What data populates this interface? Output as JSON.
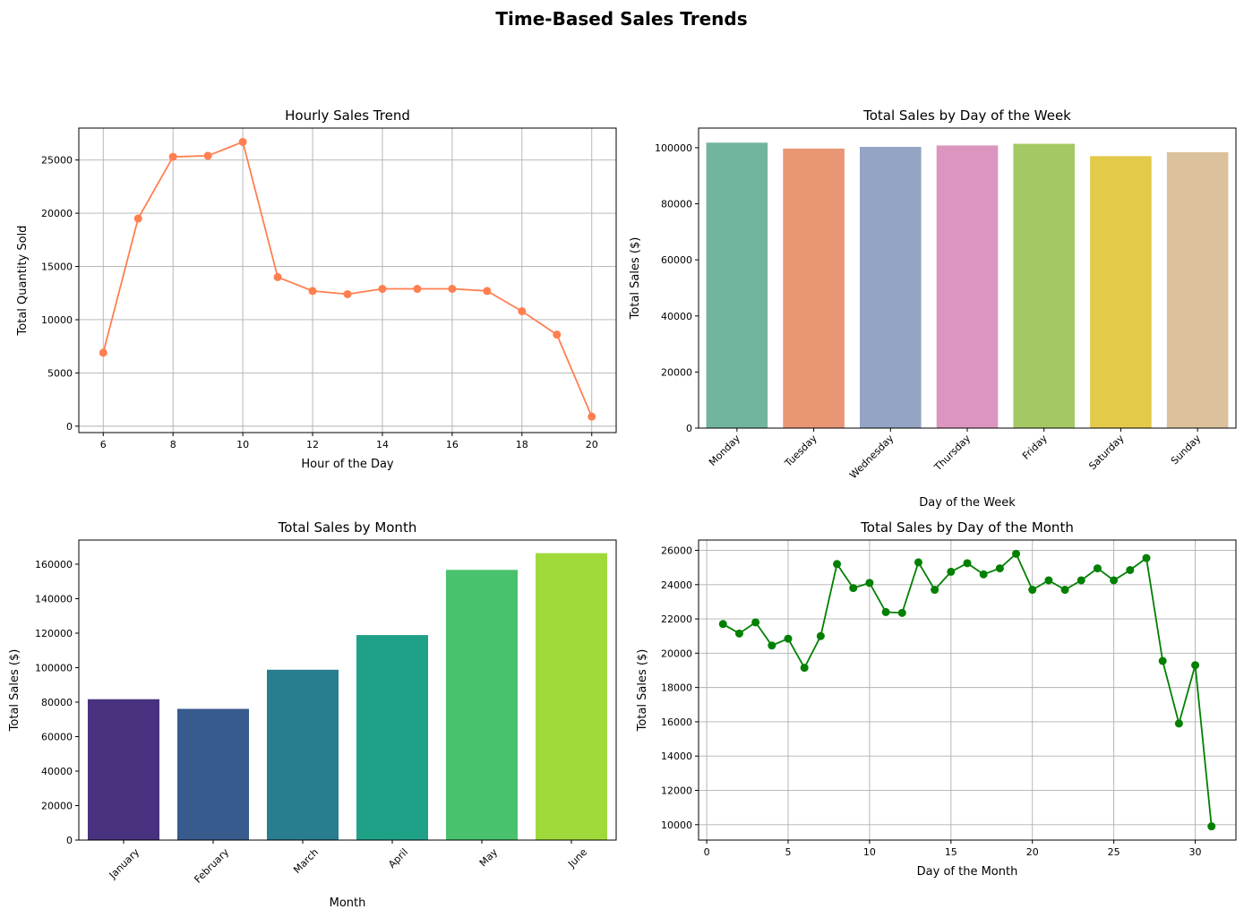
{
  "figure_title": "Time-Based Sales Trends",
  "colors": {
    "hourly_line": "#FF7F50",
    "day_of_month_line": "#008000",
    "grid": "#B0B0B0",
    "axis": "#000000"
  },
  "chart_data": [
    {
      "id": "hourly",
      "type": "line",
      "title": "Hourly Sales Trend",
      "xlabel": "Hour of the Day",
      "ylabel": "Total Quantity Sold",
      "x": [
        6,
        7,
        8,
        9,
        10,
        11,
        12,
        13,
        14,
        15,
        16,
        17,
        18,
        19,
        20
      ],
      "y": [
        6900,
        19500,
        25300,
        25400,
        26700,
        14000,
        12700,
        12400,
        12900,
        12900,
        12900,
        12700,
        10800,
        8600,
        900
      ],
      "xlim": [
        5.3,
        20.7
      ],
      "ylim": [
        -600,
        28000
      ],
      "xticks": [
        6,
        8,
        10,
        12,
        14,
        16,
        18,
        20
      ],
      "yticks": [
        0,
        5000,
        10000,
        15000,
        20000,
        25000
      ],
      "grid": true,
      "marker": "circle",
      "color": "#FF7F50"
    },
    {
      "id": "weekday",
      "type": "bar",
      "title": "Total Sales by Day of the Week",
      "xlabel": "Day of the Week",
      "ylabel": "Total Sales ($)",
      "categories": [
        "Monday",
        "Tuesday",
        "Wednesday",
        "Thursday",
        "Friday",
        "Saturday",
        "Sunday"
      ],
      "values": [
        101800,
        99700,
        100300,
        100800,
        101400,
        97000,
        98400
      ],
      "colors": [
        "#72B59F",
        "#E99675",
        "#94A4C4",
        "#DC95BF",
        "#A4C964",
        "#E3CA48",
        "#DBC29C"
      ],
      "ylim": [
        0,
        107000
      ],
      "yticks": [
        0,
        20000,
        40000,
        60000,
        80000,
        100000
      ],
      "tick_rotation": 45,
      "grid": false
    },
    {
      "id": "month",
      "type": "bar",
      "title": "Total Sales by Month",
      "xlabel": "Month",
      "ylabel": "Total Sales ($)",
      "categories": [
        "January",
        "February",
        "March",
        "April",
        "May",
        "June"
      ],
      "values": [
        81700,
        76100,
        98800,
        118900,
        156700,
        166400
      ],
      "colors": [
        "#48327F",
        "#375B8D",
        "#287D8E",
        "#1FA187",
        "#4AC16D",
        "#9FDA3A"
      ],
      "ylim": [
        0,
        174000
      ],
      "yticks": [
        0,
        20000,
        40000,
        60000,
        80000,
        100000,
        120000,
        140000,
        160000
      ],
      "tick_rotation": 45,
      "grid": false
    },
    {
      "id": "dom",
      "type": "line",
      "title": "Total Sales by Day of the Month",
      "xlabel": "Day of the Month",
      "ylabel": "Total Sales ($)",
      "x": [
        1,
        2,
        3,
        4,
        5,
        6,
        7,
        8,
        9,
        10,
        11,
        12,
        13,
        14,
        15,
        16,
        17,
        18,
        19,
        20,
        21,
        22,
        23,
        24,
        25,
        26,
        27,
        28,
        29,
        30,
        31
      ],
      "y": [
        21700,
        21150,
        21800,
        20450,
        20850,
        19150,
        21000,
        25200,
        23800,
        24100,
        22400,
        22350,
        25300,
        23700,
        24750,
        25250,
        24600,
        24950,
        25800,
        23700,
        24250,
        23700,
        24250,
        24950,
        24250,
        24850,
        25550,
        19550,
        15900,
        19300,
        9900
      ],
      "xlim": [
        -0.5,
        32.5
      ],
      "ylim": [
        9100,
        26600
      ],
      "xticks": [
        0,
        5,
        10,
        15,
        20,
        25,
        30
      ],
      "yticks": [
        10000,
        12000,
        14000,
        16000,
        18000,
        20000,
        22000,
        24000,
        26000
      ],
      "grid": true,
      "marker": "circle",
      "color": "#008000"
    }
  ]
}
